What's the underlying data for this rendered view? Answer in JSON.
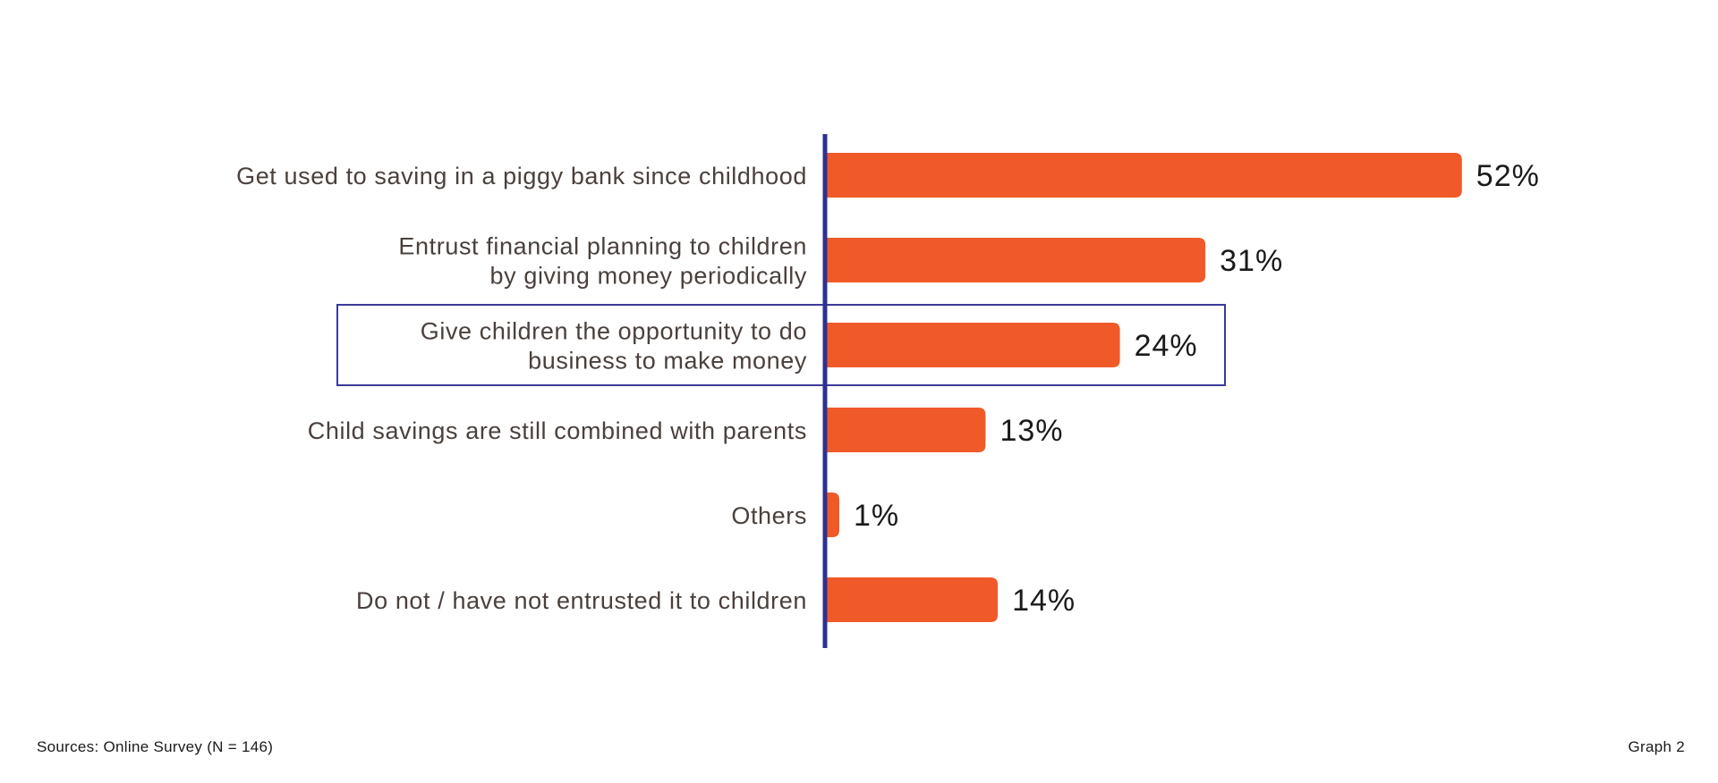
{
  "chart_data": {
    "type": "bar",
    "orientation": "horizontal",
    "categories": [
      [
        "Get used to saving in a piggy bank since childhood"
      ],
      [
        "Entrust financial planning to children",
        "by giving money periodically"
      ],
      [
        "Give children the opportunity to do",
        "business to make money"
      ],
      [
        "Child savings are still combined with parents"
      ],
      [
        "Others"
      ],
      [
        "Do not / have not entrusted it to children"
      ]
    ],
    "values": [
      52,
      31,
      24,
      13,
      1,
      14
    ],
    "value_labels": [
      "52%",
      "31%",
      "24%",
      "13%",
      "1%",
      "14%"
    ],
    "highlighted_index": 2,
    "xlim": [
      0,
      52
    ],
    "grid": false,
    "legend": "none",
    "title": "",
    "xlabel": "",
    "ylabel": ""
  },
  "colors": {
    "bar": "#f05a28",
    "axis": "#2e3192",
    "highlight_box": "#3a3a9a",
    "category_text": "#4a403c",
    "value_text": "#1a1a1a"
  },
  "footer": {
    "source": "Sources: Online Survey (N = 146)",
    "graph_label": "Graph 2"
  }
}
